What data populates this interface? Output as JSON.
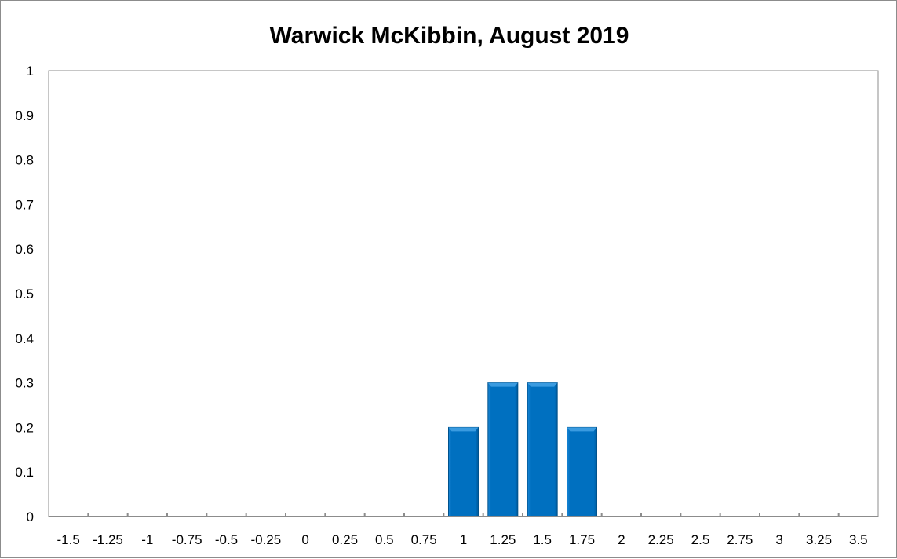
{
  "chart_data": {
    "type": "bar",
    "title": "Warwick McKibbin, August 2019",
    "categories": [
      "-1.5",
      "-1.25",
      "-1",
      "-0.75",
      "-0.5",
      "-0.25",
      "0",
      "0.25",
      "0.5",
      "0.75",
      "1",
      "1.25",
      "1.5",
      "1.75",
      "2",
      "2.25",
      "2.5",
      "2.75",
      "3",
      "3.25",
      "3.5"
    ],
    "values": [
      0,
      0,
      0,
      0,
      0,
      0,
      0,
      0,
      0,
      0,
      0.2,
      0.3,
      0.3,
      0.2,
      0,
      0,
      0,
      0,
      0,
      0,
      0
    ],
    "ylim": [
      0,
      1
    ],
    "yticks": [
      "0",
      "0.1",
      "0.2",
      "0.3",
      "0.4",
      "0.5",
      "0.6",
      "0.7",
      "0.8",
      "0.9",
      "1"
    ],
    "xlabel": "",
    "ylabel": "",
    "grid": false,
    "legend": "none",
    "bar_color": "#0070C0"
  }
}
